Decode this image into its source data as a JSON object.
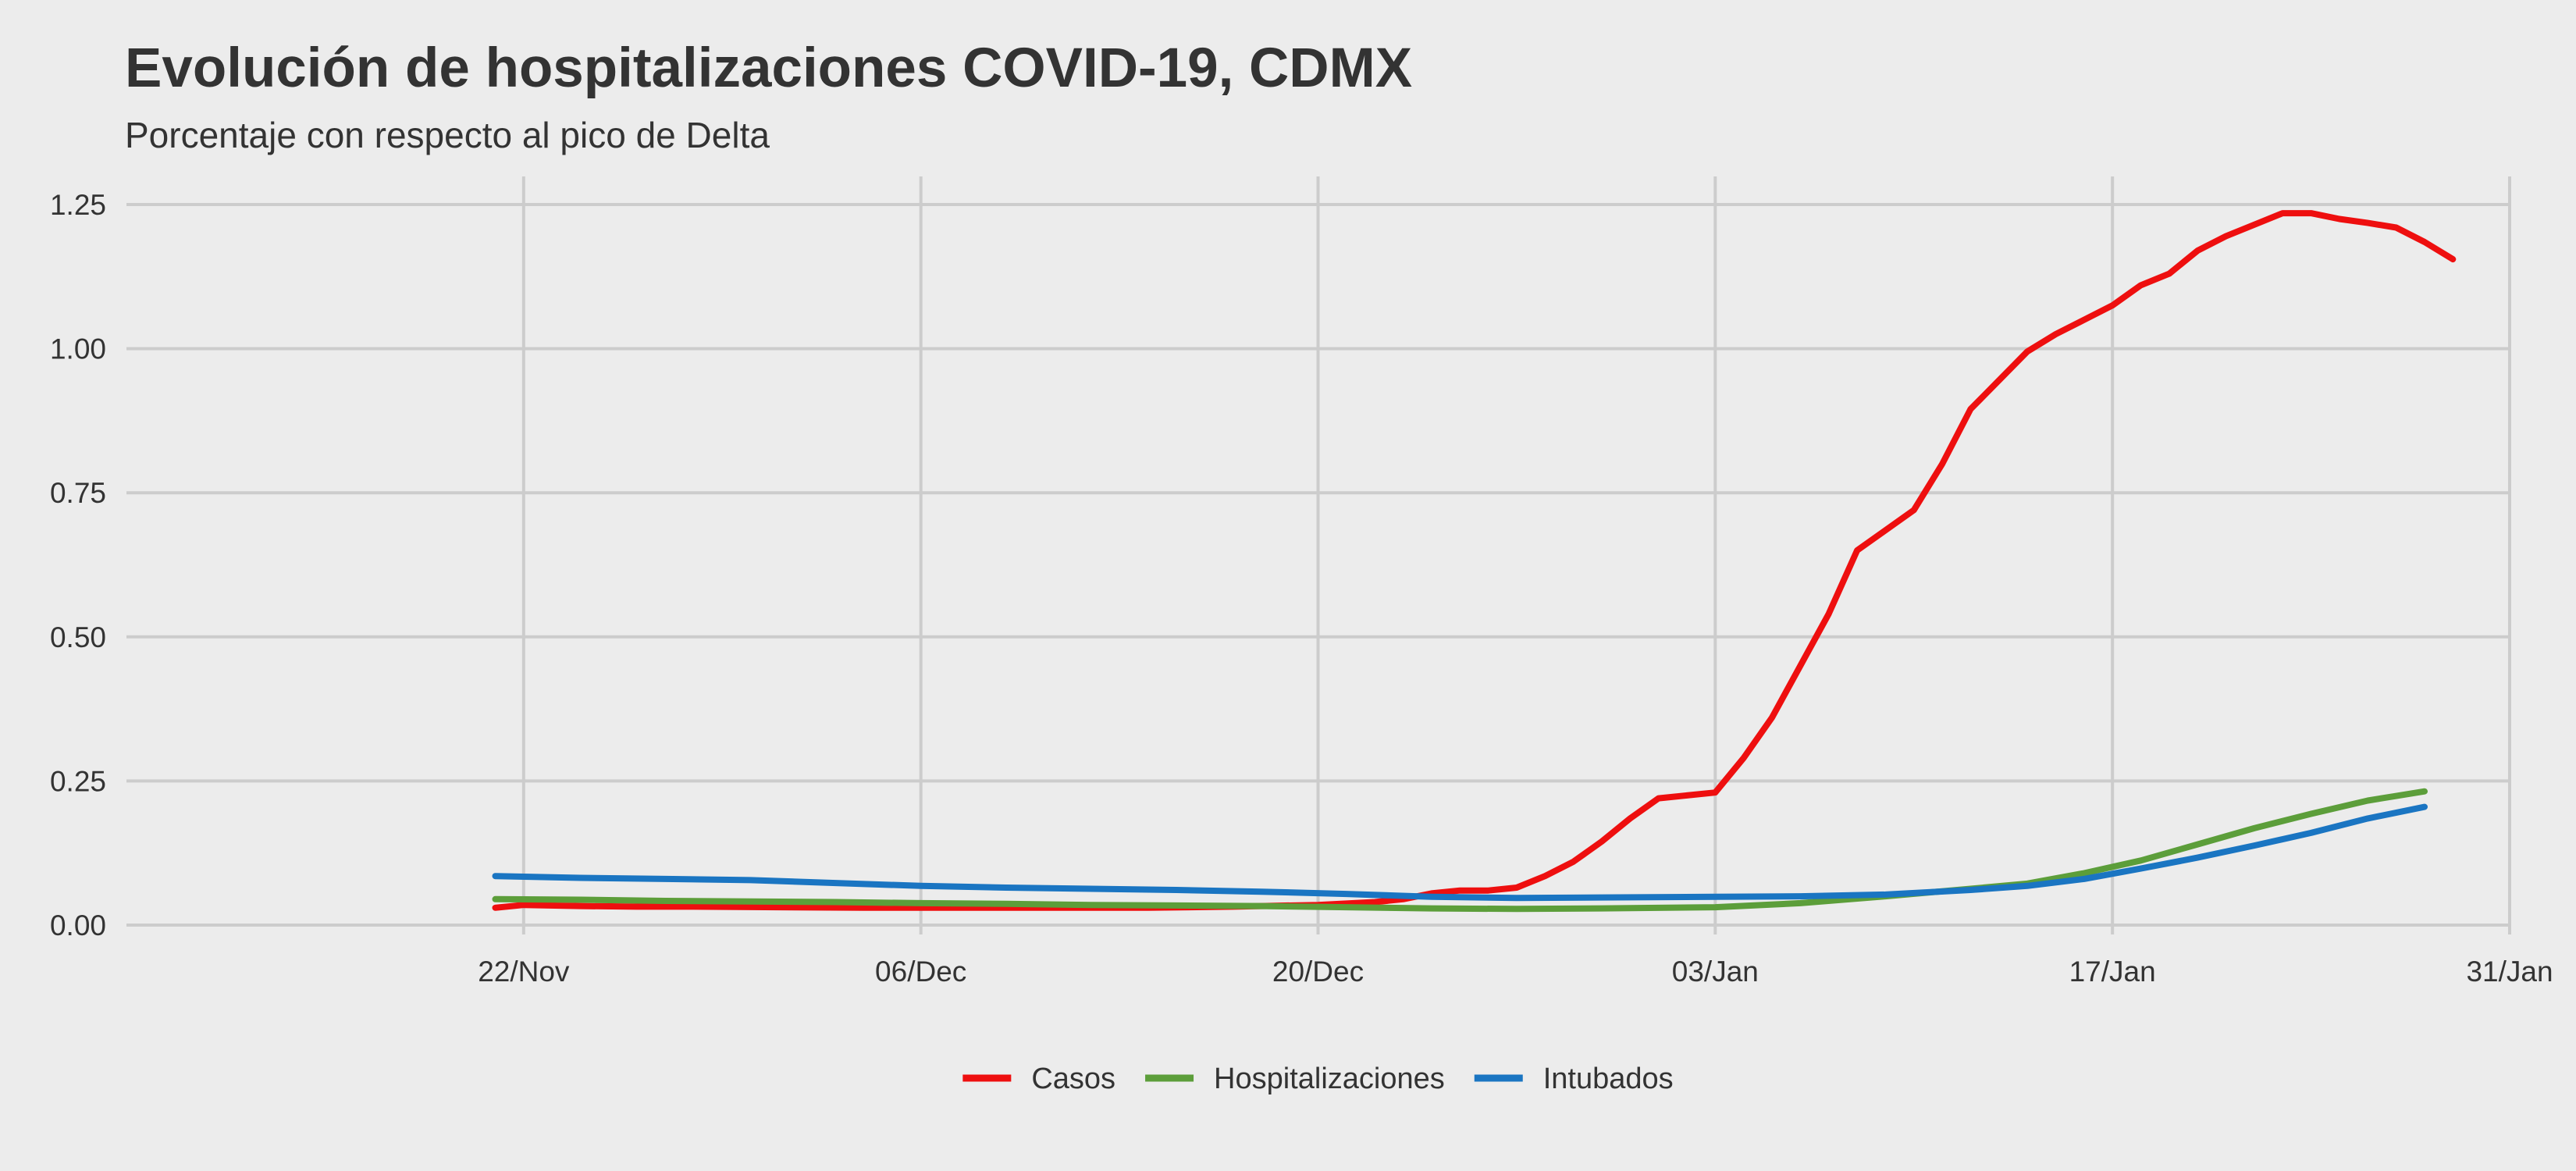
{
  "chart_data": {
    "type": "line",
    "title": "Evolución de hospitalizaciones COVID-19, CDMX",
    "subtitle": "Porcentaje con respecto al pico de Delta",
    "xlabel": "",
    "ylabel": "",
    "x_type": "date",
    "xlim": [
      "2021-11-08",
      "2022-01-31"
    ],
    "ylim": [
      0,
      1.25
    ],
    "x_ticks": [
      {
        "date": "2021-11-22",
        "label": "22/Nov"
      },
      {
        "date": "2021-12-06",
        "label": "06/Dec"
      },
      {
        "date": "2021-12-20",
        "label": "20/Dec"
      },
      {
        "date": "2022-01-03",
        "label": "03/Jan"
      },
      {
        "date": "2022-01-17",
        "label": "17/Jan"
      },
      {
        "date": "2022-01-31",
        "label": "31/Jan"
      }
    ],
    "y_ticks": [
      {
        "value": 0,
        "label": "0.00"
      },
      {
        "value": 0.25,
        "label": "0.25"
      },
      {
        "value": 0.5,
        "label": "0.50"
      },
      {
        "value": 0.75,
        "label": "0.75"
      },
      {
        "value": 1.0,
        "label": "1.00"
      },
      {
        "value": 1.25,
        "label": "1.25"
      }
    ],
    "grid": true,
    "legend_position": "bottom",
    "series": [
      {
        "name": "Casos",
        "color": "#ee0f0f",
        "points": [
          [
            "2021-11-21",
            0.03
          ],
          [
            "2021-11-22",
            0.035
          ],
          [
            "2021-11-24",
            0.033
          ],
          [
            "2021-11-26",
            0.032
          ],
          [
            "2021-11-28",
            0.032
          ],
          [
            "2021-12-01",
            0.031
          ],
          [
            "2021-12-04",
            0.03
          ],
          [
            "2021-12-07",
            0.03
          ],
          [
            "2021-12-10",
            0.03
          ],
          [
            "2021-12-14",
            0.03
          ],
          [
            "2021-12-17",
            0.032
          ],
          [
            "2021-12-20",
            0.035
          ],
          [
            "2021-12-22",
            0.04
          ],
          [
            "2021-12-23",
            0.045
          ],
          [
            "2021-12-24",
            0.055
          ],
          [
            "2021-12-25",
            0.06
          ],
          [
            "2021-12-26",
            0.06
          ],
          [
            "2021-12-27",
            0.065
          ],
          [
            "2021-12-28",
            0.085
          ],
          [
            "2021-12-29",
            0.11
          ],
          [
            "2021-12-30",
            0.145
          ],
          [
            "2021-12-31",
            0.185
          ],
          [
            "2022-01-01",
            0.22
          ],
          [
            "2022-01-02",
            0.225
          ],
          [
            "2022-01-03",
            0.23
          ],
          [
            "2022-01-04",
            0.29
          ],
          [
            "2022-01-05",
            0.36
          ],
          [
            "2022-01-06",
            0.45
          ],
          [
            "2022-01-07",
            0.54
          ],
          [
            "2022-01-08",
            0.65
          ],
          [
            "2022-01-09",
            0.685
          ],
          [
            "2022-01-10",
            0.72
          ],
          [
            "2022-01-11",
            0.8
          ],
          [
            "2022-01-12",
            0.895
          ],
          [
            "2022-01-13",
            0.945
          ],
          [
            "2022-01-14",
            0.995
          ],
          [
            "2022-01-15",
            1.025
          ],
          [
            "2022-01-16",
            1.05
          ],
          [
            "2022-01-17",
            1.075
          ],
          [
            "2022-01-18",
            1.11
          ],
          [
            "2022-01-19",
            1.13
          ],
          [
            "2022-01-20",
            1.17
          ],
          [
            "2022-01-21",
            1.195
          ],
          [
            "2022-01-22",
            1.215
          ],
          [
            "2022-01-23",
            1.235
          ],
          [
            "2022-01-24",
            1.235
          ],
          [
            "2022-01-25",
            1.225
          ],
          [
            "2022-01-26",
            1.218
          ],
          [
            "2022-01-27",
            1.21
          ],
          [
            "2022-01-28",
            1.185
          ],
          [
            "2022-01-29",
            1.155
          ]
        ]
      },
      {
        "name": "Hospitalizaciones",
        "color": "#5c9e3a",
        "points": [
          [
            "2021-11-21",
            0.045
          ],
          [
            "2021-11-24",
            0.044
          ],
          [
            "2021-11-27",
            0.042
          ],
          [
            "2021-11-30",
            0.041
          ],
          [
            "2021-12-03",
            0.04
          ],
          [
            "2021-12-06",
            0.038
          ],
          [
            "2021-12-09",
            0.037
          ],
          [
            "2021-12-12",
            0.035
          ],
          [
            "2021-12-15",
            0.034
          ],
          [
            "2021-12-18",
            0.033
          ],
          [
            "2021-12-21",
            0.031
          ],
          [
            "2021-12-24",
            0.029
          ],
          [
            "2021-12-27",
            0.028
          ],
          [
            "2021-12-30",
            0.029
          ],
          [
            "2022-01-03",
            0.031
          ],
          [
            "2022-01-06",
            0.038
          ],
          [
            "2022-01-09",
            0.05
          ],
          [
            "2022-01-12",
            0.063
          ],
          [
            "2022-01-14",
            0.072
          ],
          [
            "2022-01-16",
            0.09
          ],
          [
            "2022-01-18",
            0.112
          ],
          [
            "2022-01-20",
            0.14
          ],
          [
            "2022-01-22",
            0.168
          ],
          [
            "2022-01-24",
            0.193
          ],
          [
            "2022-01-26",
            0.216
          ],
          [
            "2022-01-28",
            0.232
          ]
        ]
      },
      {
        "name": "Intubados",
        "color": "#1a75c2",
        "points": [
          [
            "2021-11-21",
            0.085
          ],
          [
            "2021-11-24",
            0.082
          ],
          [
            "2021-11-27",
            0.08
          ],
          [
            "2021-11-30",
            0.078
          ],
          [
            "2021-12-03",
            0.073
          ],
          [
            "2021-12-06",
            0.068
          ],
          [
            "2021-12-09",
            0.065
          ],
          [
            "2021-12-12",
            0.063
          ],
          [
            "2021-12-15",
            0.061
          ],
          [
            "2021-12-18",
            0.058
          ],
          [
            "2021-12-21",
            0.054
          ],
          [
            "2021-12-24",
            0.049
          ],
          [
            "2021-12-27",
            0.047
          ],
          [
            "2021-12-30",
            0.048
          ],
          [
            "2022-01-03",
            0.049
          ],
          [
            "2022-01-06",
            0.05
          ],
          [
            "2022-01-09",
            0.053
          ],
          [
            "2022-01-12",
            0.061
          ],
          [
            "2022-01-14",
            0.068
          ],
          [
            "2022-01-16",
            0.08
          ],
          [
            "2022-01-18",
            0.098
          ],
          [
            "2022-01-20",
            0.117
          ],
          [
            "2022-01-22",
            0.138
          ],
          [
            "2022-01-24",
            0.16
          ],
          [
            "2022-01-26",
            0.185
          ],
          [
            "2022-01-28",
            0.205
          ]
        ]
      }
    ]
  }
}
